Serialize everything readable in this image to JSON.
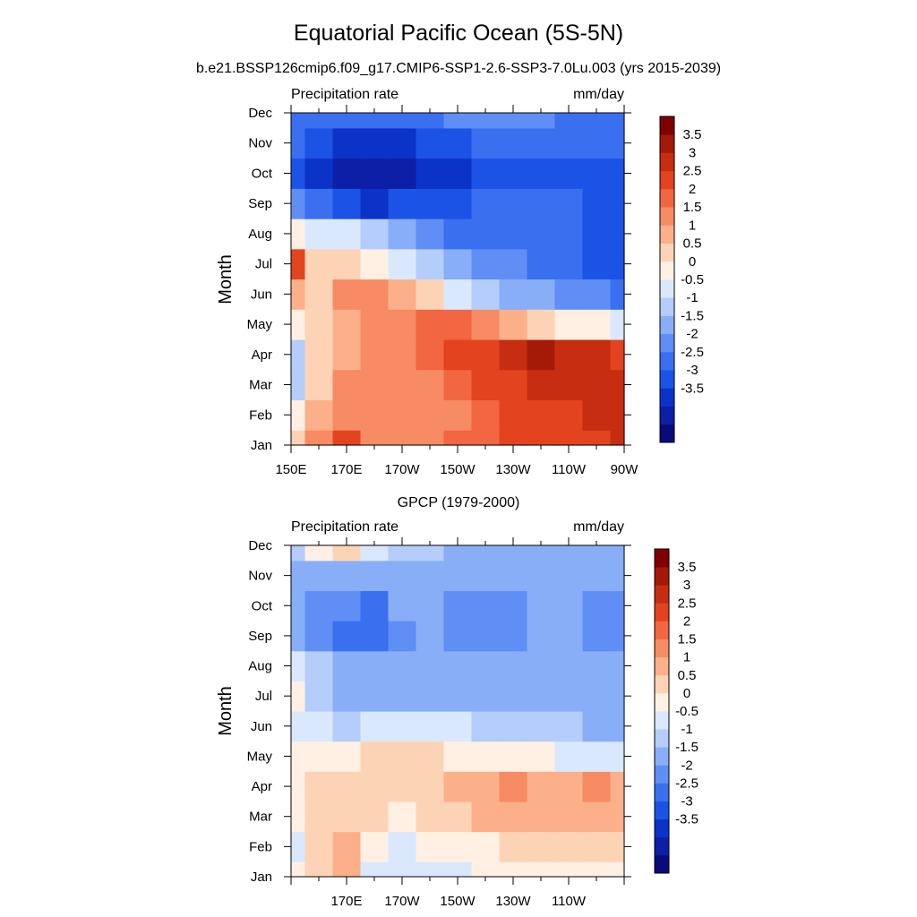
{
  "figure": {
    "title": "Equatorial Pacific Ocean (5S-5N)",
    "subtitle": "b.e21.BSSP126cmip6.f09_g17.CMIP6-SSP1-2.6-SSP3-7.0Lu.003 (yrs 2015-2039)"
  },
  "colors": {
    "levels": [
      "#0a0a7a",
      "#0c1fa6",
      "#0b33c8",
      "#1a53e6",
      "#3a6ff0",
      "#5f8ff5",
      "#88aef8",
      "#b4cdfb",
      "#d9e8fd",
      "#fff0e3",
      "#fdd3b6",
      "#fbb08a",
      "#f78b63",
      "#f26641",
      "#e3431f",
      "#c72d10",
      "#a31a08",
      "#800000"
    ]
  },
  "chart_data": [
    {
      "type": "heatmap",
      "title": "",
      "left_label": "Precipitation rate",
      "right_label": "mm/day",
      "xlabel": "",
      "ylabel": "Month",
      "x_ticks": [
        "150E",
        "170E",
        "170W",
        "150W",
        "130W",
        "110W",
        "90W"
      ],
      "y_ticks": [
        "Jan",
        "Feb",
        "Mar",
        "Apr",
        "May",
        "Jun",
        "Jul",
        "Aug",
        "Sep",
        "Oct",
        "Nov",
        "Dec"
      ],
      "x_range": [
        "150E",
        "90W"
      ],
      "x_values": [
        150,
        160,
        170,
        180,
        190,
        200,
        210,
        220,
        230,
        240,
        250,
        260,
        270
      ],
      "colorbar_labels": [
        "3.5",
        "3",
        "2.5",
        "2",
        "1.5",
        "1",
        "0.5",
        "0",
        "-0.5",
        "-1",
        "-1.5",
        "-2",
        "-2.5",
        "-3",
        "-3.5"
      ],
      "values": [
        [
          1.2,
          2.0,
          3.0,
          2.4,
          2.2,
          2.4,
          2.6,
          2.8,
          3.0,
          3.0,
          3.2,
          3.3,
          3.5
        ],
        [
          0.5,
          1.8,
          2.4,
          2.0,
          2.0,
          2.2,
          2.3,
          2.8,
          3.0,
          3.2,
          3.3,
          3.5,
          3.6
        ],
        [
          -0.3,
          1.4,
          2.0,
          2.0,
          2.2,
          2.4,
          2.8,
          3.0,
          3.2,
          3.6,
          3.8,
          3.9,
          3.6
        ],
        [
          -0.5,
          1.2,
          1.8,
          2.2,
          2.4,
          2.6,
          3.0,
          3.2,
          3.6,
          4.0,
          3.9,
          3.6,
          3.2
        ],
        [
          0.8,
          1.2,
          1.6,
          2.0,
          2.4,
          2.6,
          2.6,
          2.2,
          1.8,
          1.2,
          0.8,
          0.6,
          0.0
        ],
        [
          1.6,
          1.0,
          2.2,
          2.0,
          1.6,
          1.0,
          0.4,
          -0.2,
          -0.6,
          -1.0,
          -1.2,
          -1.4,
          -1.6
        ],
        [
          3.0,
          1.4,
          1.0,
          0.6,
          0.2,
          -0.4,
          -0.8,
          -1.2,
          -1.5,
          -1.8,
          -2.0,
          -2.2,
          -2.2
        ],
        [
          0.8,
          0.4,
          0.0,
          -0.5,
          -1.0,
          -1.4,
          -1.6,
          -1.8,
          -2.0,
          -2.0,
          -2.0,
          -2.2,
          -2.2
        ],
        [
          -1.5,
          -2.0,
          -2.4,
          -2.6,
          -2.4,
          -2.2,
          -2.2,
          -2.0,
          -2.0,
          -2.0,
          -2.0,
          -2.2,
          -2.2
        ],
        [
          -2.2,
          -2.8,
          -3.2,
          -3.4,
          -3.2,
          -2.8,
          -2.6,
          -2.4,
          -2.2,
          -2.2,
          -2.2,
          -2.4,
          -2.4
        ],
        [
          -1.8,
          -2.2,
          -2.6,
          -2.8,
          -2.6,
          -2.4,
          -2.2,
          -2.0,
          -2.0,
          -2.0,
          -2.0,
          -2.0,
          -2.0
        ],
        [
          -1.6,
          -1.8,
          -2.0,
          -2.0,
          -1.8,
          -1.6,
          -1.5,
          -1.4,
          -1.4,
          -1.4,
          -1.6,
          -1.6,
          -1.6
        ]
      ]
    },
    {
      "type": "heatmap",
      "title": "GPCP (1979-2000)",
      "left_label": "Precipitation rate",
      "right_label": "mm/day",
      "xlabel": "",
      "ylabel": "Month",
      "x_ticks": [
        "170E",
        "170W",
        "150W",
        "130W",
        "110W"
      ],
      "y_ticks": [
        "Jan",
        "Feb",
        "Mar",
        "Apr",
        "May",
        "Jun",
        "Jul",
        "Aug",
        "Sep",
        "Oct",
        "Nov",
        "Dec"
      ],
      "x_values": [
        150,
        160,
        170,
        180,
        190,
        200,
        210,
        220,
        230,
        240,
        250,
        260,
        270
      ],
      "colorbar_labels": [
        "3.5",
        "3",
        "2.5",
        "2",
        "1.5",
        "1",
        "0.5",
        "0",
        "-0.5",
        "-1",
        "-1.5",
        "-2",
        "-2.5",
        "-3",
        "-3.5"
      ],
      "values": [
        [
          0.6,
          1.2,
          1.8,
          0.4,
          0.2,
          0.4,
          0.4,
          0.6,
          0.6,
          0.6,
          0.6,
          0.6,
          0.6
        ],
        [
          0.4,
          1.0,
          1.6,
          0.8,
          0.4,
          0.6,
          0.6,
          0.8,
          1.0,
          1.0,
          1.0,
          1.0,
          1.0
        ],
        [
          0.6,
          1.2,
          1.4,
          1.0,
          0.8,
          1.0,
          1.4,
          1.6,
          1.8,
          1.8,
          1.6,
          1.8,
          1.6
        ],
        [
          0.8,
          1.0,
          1.2,
          1.2,
          1.2,
          1.4,
          1.8,
          1.8,
          2.0,
          1.8,
          1.6,
          2.0,
          1.8
        ],
        [
          0.6,
          0.6,
          0.8,
          1.0,
          1.0,
          1.0,
          0.8,
          0.8,
          0.6,
          0.6,
          0.4,
          0.2,
          0.0
        ],
        [
          0.4,
          0.0,
          -0.2,
          0.2,
          0.2,
          0.2,
          0.0,
          -0.2,
          -0.4,
          -0.4,
          -0.4,
          -0.6,
          -0.6
        ],
        [
          0.6,
          -0.2,
          -0.6,
          -0.6,
          -0.6,
          -0.6,
          -0.6,
          -0.8,
          -0.8,
          -0.8,
          -0.8,
          -0.8,
          -0.8
        ],
        [
          0.2,
          -0.4,
          -0.8,
          -0.8,
          -0.8,
          -0.8,
          -1.0,
          -1.0,
          -1.0,
          -0.9,
          -0.8,
          -1.0,
          -1.0
        ],
        [
          -1.0,
          -1.2,
          -1.6,
          -1.8,
          -1.2,
          -1.0,
          -1.2,
          -1.2,
          -1.2,
          -1.0,
          -0.8,
          -1.2,
          -1.2
        ],
        [
          -0.8,
          -1.2,
          -1.4,
          -1.8,
          -1.0,
          -0.8,
          -1.2,
          -1.2,
          -1.2,
          -1.0,
          -0.8,
          -1.2,
          -1.2
        ],
        [
          -1.0,
          -1.0,
          -0.8,
          -0.8,
          -0.8,
          -0.8,
          -0.8,
          -0.8,
          -0.8,
          -0.8,
          -0.8,
          -1.0,
          -1.0
        ],
        [
          -0.2,
          0.6,
          1.2,
          0.4,
          -0.2,
          -0.4,
          -0.6,
          -0.6,
          -0.6,
          -0.6,
          -0.6,
          -0.6,
          -0.6
        ]
      ]
    }
  ]
}
